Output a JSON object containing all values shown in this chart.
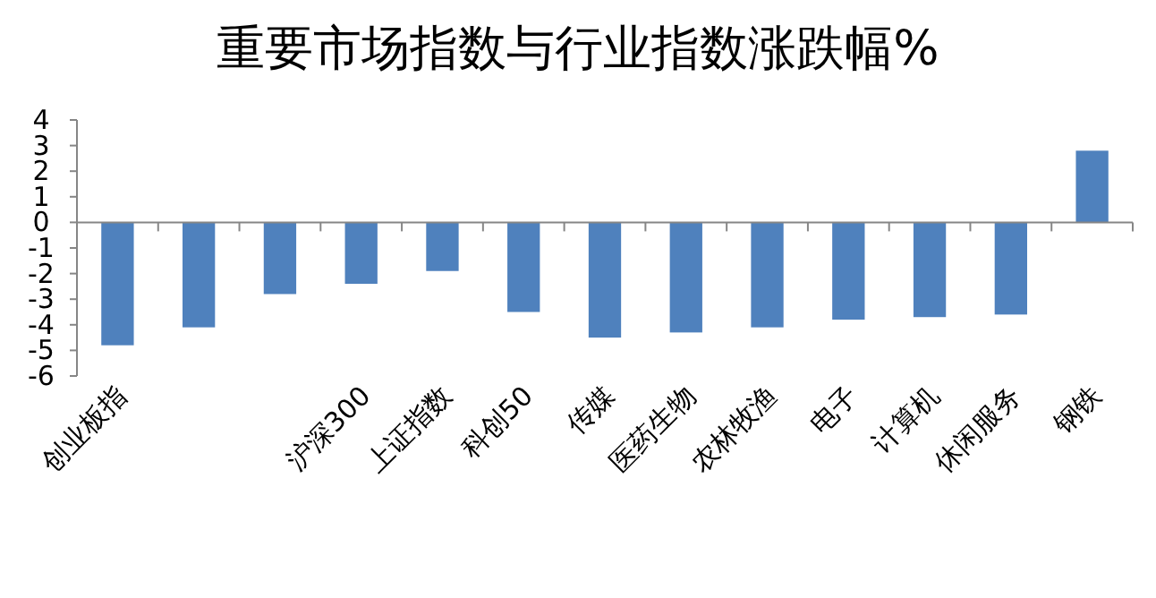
{
  "chart_data": {
    "type": "bar",
    "title": "重要市场指数与行业指数涨跌幅%",
    "categories": [
      "创业板指",
      null,
      null,
      "沪深300",
      "上证指数",
      "科创50",
      "传媒",
      "医药生物",
      "农林牧渔",
      "电子",
      "计算机",
      "休闲服务",
      "钢铁"
    ],
    "values": [
      -4.8,
      -4.1,
      -2.8,
      -2.4,
      -1.9,
      -3.5,
      -4.5,
      -4.3,
      -4.1,
      -3.8,
      -3.7,
      -3.6,
      2.8
    ],
    "color": "#4f81bd",
    "ylim": [
      -6,
      4
    ],
    "yticks": [
      -6,
      -5,
      -4,
      -3,
      -2,
      -1,
      0,
      1,
      2,
      3,
      4
    ]
  }
}
